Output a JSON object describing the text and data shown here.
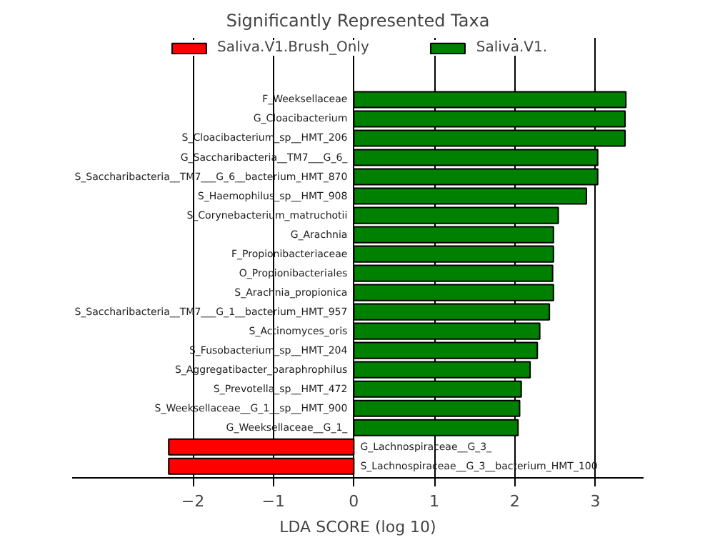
{
  "chart_data": {
    "type": "bar",
    "orientation": "horizontal",
    "title": "Significantly Represented Taxa",
    "xlabel": "LDA SCORE (log 10)",
    "categories": [
      "F_Weeksellaceae",
      "G_Cloacibacterium",
      "S_Cloacibacterium_sp__HMT_206",
      "G_Saccharibacteria__TM7___G_6_",
      "S_Saccharibacteria__TM7___G_6__bacterium_HMT_870",
      "S_Haemophilus_sp__HMT_908",
      "S_Corynebacterium_matruchotii",
      "G_Arachnia",
      "F_Propionibacteriaceae",
      "O_Propionibacteriales",
      "S_Arachnia_propionica",
      "S_Saccharibacteria__TM7___G_1__bacterium_HMT_957",
      "S_Actinomyces_oris",
      "S_Fusobacterium_sp__HMT_204",
      "S_Aggregatibacter_paraphrophilus",
      "S_Prevotella_sp__HMT_472",
      "S_Weeksellaceae__G_1__sp__HMT_900",
      "G_Weeksellaceae__G_1_",
      "G_Lachnospiraceae__G_3_",
      "S_Lachnospiraceae__G_3__bacterium_HMT_100"
    ],
    "series": [
      {
        "name": "Saliva.V1.Brush_Only",
        "color": "#ff0000",
        "values": [
          null,
          null,
          null,
          null,
          null,
          null,
          null,
          null,
          null,
          null,
          null,
          null,
          null,
          null,
          null,
          null,
          null,
          null,
          -2.3,
          -2.3
        ]
      },
      {
        "name": "Saliva.V1.",
        "color": "#008000",
        "values": [
          3.38,
          3.37,
          3.37,
          3.03,
          3.03,
          2.89,
          2.54,
          2.48,
          2.48,
          2.47,
          2.48,
          2.43,
          2.31,
          2.28,
          2.19,
          2.08,
          2.06,
          2.04,
          null,
          null
        ]
      }
    ],
    "xlim": [
      -3.5,
      3.6
    ],
    "xticks": [
      -2,
      -1,
      0,
      1,
      2,
      3
    ],
    "grid": "x",
    "legend": "top"
  }
}
